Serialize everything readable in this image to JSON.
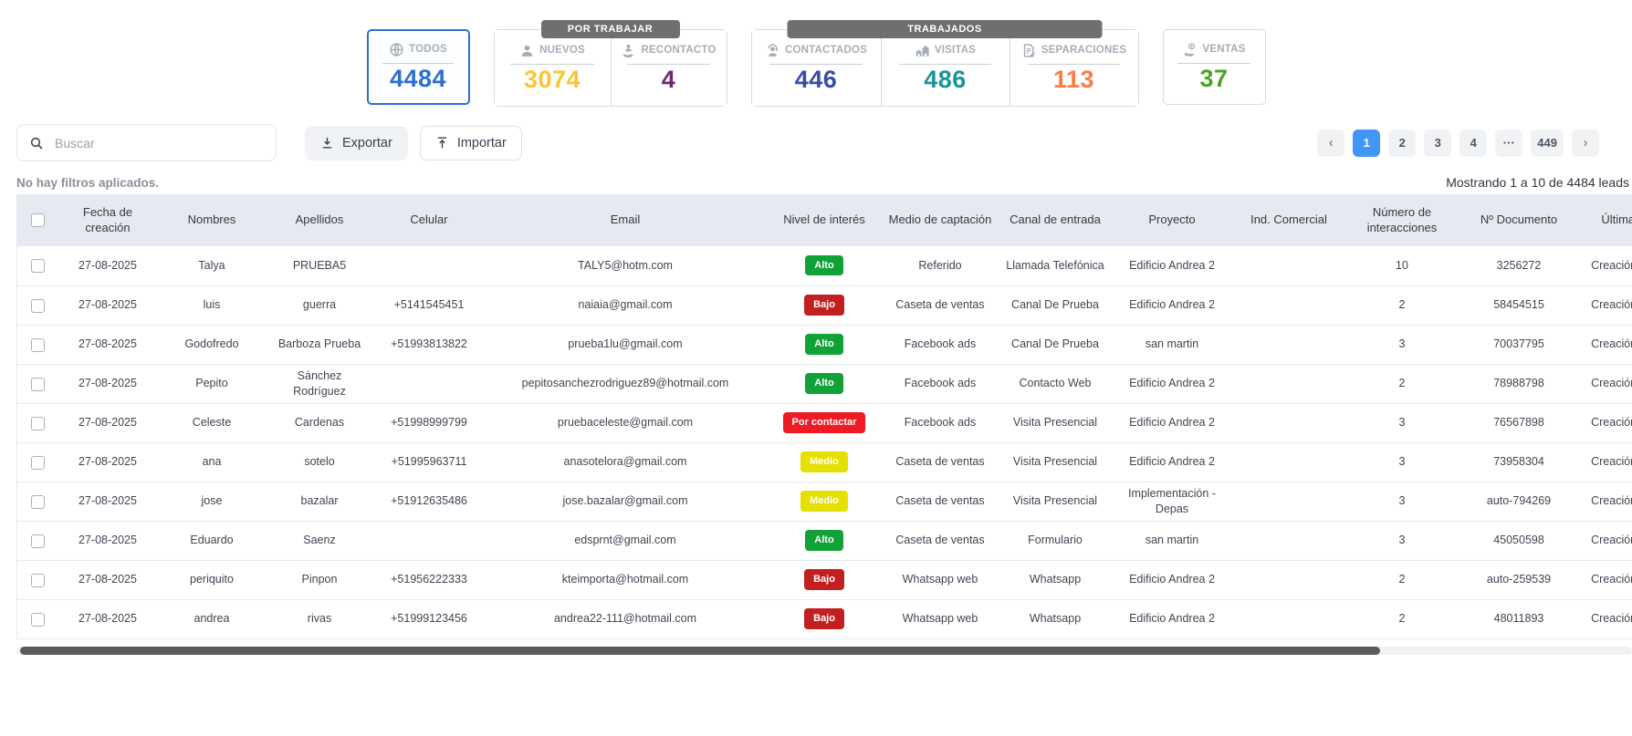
{
  "stats": {
    "groups": [
      {
        "label": "POR TRABAJAR"
      },
      {
        "label": "TRABAJADOS"
      }
    ],
    "cards": [
      {
        "label": "TODOS",
        "value": "4484",
        "color": "#2d6fd1"
      },
      {
        "label": "NUEVOS",
        "value": "3074",
        "color": "#fbc530"
      },
      {
        "label": "RECONTACTO",
        "value": "4",
        "color": "#6d2a6f"
      },
      {
        "label": "CONTACTADOS",
        "value": "446",
        "color": "#3a4da5"
      },
      {
        "label": "VISITAS",
        "value": "486",
        "color": "#1b949b"
      },
      {
        "label": "SEPARACIONES",
        "value": "113",
        "color": "#fb7b46"
      },
      {
        "label": "VENTAS",
        "value": "37",
        "color": "#49a321"
      }
    ]
  },
  "toolbar": {
    "search_placeholder": "Buscar",
    "export_label": "Exportar",
    "import_label": "Importar"
  },
  "pagination": {
    "prev": "‹",
    "next": "›",
    "pages": [
      "1",
      "2",
      "3",
      "4",
      "···",
      "449"
    ],
    "active_page": "1"
  },
  "filters_note": "No hay filtros aplicados.",
  "results_summary": "Mostrando 1 a 10 de 4484 leads",
  "badge_colors": {
    "Alto": "#11a237",
    "Medio": "#e5e000",
    "Bajo": "#c22020",
    "Por contactar": "#ee1b24"
  },
  "table": {
    "columns": [
      "Fecha de creación",
      "Nombres",
      "Apellidos",
      "Celular",
      "Email",
      "Nivel de interés",
      "Medio de captación",
      "Canal de entrada",
      "Proyecto",
      "Ind. Comercial",
      "Número de interacciones",
      "Nº Documento",
      "Última interacción"
    ],
    "rows": [
      {
        "fecha": "27-08-2025",
        "nombres": "Talya",
        "apellidos": "PRUEBA5",
        "celular": "",
        "email": "TALY5@hotm.com",
        "nivel": "Alto",
        "medio": "Referido",
        "canal": "Llamada Telefónica",
        "proyecto": "Edificio Andrea 2",
        "ind_comercial": "",
        "interacciones": "10",
        "documento": "3256272",
        "ultima": "Creación de prospecto"
      },
      {
        "fecha": "27-08-2025",
        "nombres": "luis",
        "apellidos": "guerra",
        "celular": "+5141545451",
        "email": "naiaia@gmail.com",
        "nivel": "Bajo",
        "medio": "Caseta de ventas",
        "canal": "Canal De Prueba",
        "proyecto": "Edificio Andrea 2",
        "ind_comercial": "",
        "interacciones": "2",
        "documento": "58454515",
        "ultima": "Creación de prospecto"
      },
      {
        "fecha": "27-08-2025",
        "nombres": "Godofredo",
        "apellidos": "Barboza Prueba",
        "celular": "+51993813822",
        "email": "prueba1lu@gmail.com",
        "nivel": "Alto",
        "medio": "Facebook ads",
        "canal": "Canal De Prueba",
        "proyecto": "san martin",
        "ind_comercial": "",
        "interacciones": "3",
        "documento": "70037795",
        "ultima": "Creación de prospecto"
      },
      {
        "fecha": "27-08-2025",
        "nombres": "Pepito",
        "apellidos": "Sánchez Rodríguez",
        "celular": "",
        "email": "pepitosanchezrodriguez89@hotmail.com",
        "nivel": "Alto",
        "medio": "Facebook ads",
        "canal": "Contacto Web",
        "proyecto": "Edificio Andrea 2",
        "ind_comercial": "",
        "interacciones": "2",
        "documento": "78988798",
        "ultima": "Creación de prospecto"
      },
      {
        "fecha": "27-08-2025",
        "nombres": "Celeste",
        "apellidos": "Cardenas",
        "celular": "+51998999799",
        "email": "pruebaceleste@gmail.com",
        "nivel": "Por contactar",
        "medio": "Facebook ads",
        "canal": "Visita Presencial",
        "proyecto": "Edificio Andrea 2",
        "ind_comercial": "",
        "interacciones": "3",
        "documento": "76567898",
        "ultima": "Creación de prospecto"
      },
      {
        "fecha": "27-08-2025",
        "nombres": "ana",
        "apellidos": "sotelo",
        "celular": "+51995963711",
        "email": "anasotelora@gmail.com",
        "nivel": "Medio",
        "medio": "Caseta de ventas",
        "canal": "Visita Presencial",
        "proyecto": "Edificio Andrea 2",
        "ind_comercial": "",
        "interacciones": "3",
        "documento": "73958304",
        "ultima": "Creación de prospecto"
      },
      {
        "fecha": "27-08-2025",
        "nombres": "jose",
        "apellidos": "bazalar",
        "celular": "+51912635486",
        "email": "jose.bazalar@gmail.com",
        "nivel": "Medio",
        "medio": "Caseta de ventas",
        "canal": "Visita Presencial",
        "proyecto": "Implementación - Depas",
        "ind_comercial": "",
        "interacciones": "3",
        "documento": "auto-794269",
        "ultima": "Creación de prospecto"
      },
      {
        "fecha": "27-08-2025",
        "nombres": "Eduardo",
        "apellidos": "Saenz",
        "celular": "",
        "email": "edsprnt@gmail.com",
        "nivel": "Alto",
        "medio": "Caseta de ventas",
        "canal": "Formulario",
        "proyecto": "san martin",
        "ind_comercial": "",
        "interacciones": "3",
        "documento": "45050598",
        "ultima": "Creación de prospecto"
      },
      {
        "fecha": "27-08-2025",
        "nombres": "periquito",
        "apellidos": "Pinpon",
        "celular": "+51956222333",
        "email": "kteimporta@hotmail.com",
        "nivel": "Bajo",
        "medio": "Whatsapp web",
        "canal": "Whatsapp",
        "proyecto": "Edificio Andrea 2",
        "ind_comercial": "",
        "interacciones": "2",
        "documento": "auto-259539",
        "ultima": "Creación de prospecto"
      },
      {
        "fecha": "27-08-2025",
        "nombres": "andrea",
        "apellidos": "rivas",
        "celular": "+51999123456",
        "email": "andrea22-111@hotmail.com",
        "nivel": "Bajo",
        "medio": "Whatsapp web",
        "canal": "Whatsapp",
        "proyecto": "Edificio Andrea 2",
        "ind_comercial": "",
        "interacciones": "2",
        "documento": "48011893",
        "ultima": "Creación de prospecto"
      }
    ]
  }
}
